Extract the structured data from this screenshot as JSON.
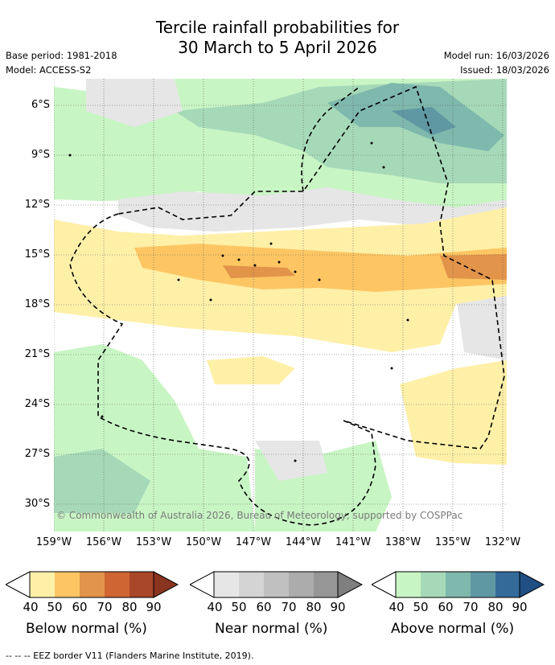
{
  "title_line1": "Tercile rainfall probabilities for",
  "title_line2": "30 March to 5 April 2026",
  "base_period": "Base period: 1981-2018",
  "model": "Model: ACCESS-S2",
  "model_run": "Model run: 16/03/2026",
  "issued": "Issued: 18/03/2026",
  "lat_ticks": [
    "6°S",
    "9°S",
    "12°S",
    "15°S",
    "18°S",
    "21°S",
    "24°S",
    "27°S",
    "30°S"
  ],
  "lon_ticks": [
    "159°W",
    "156°W",
    "153°W",
    "150°W",
    "147°W",
    "144°W",
    "141°W",
    "138°W",
    "135°W",
    "132°W"
  ],
  "credit": "© Commonwealth of Australia 2026, Bureau of Meteorology, supported by COSPPac",
  "legend": {
    "below": {
      "caption": "Below normal (%)",
      "labels": [
        "40",
        "50",
        "60",
        "70",
        "80",
        "90"
      ],
      "colors": [
        "#fff0a8",
        "#fdc663",
        "#e2944a",
        "#cf6533",
        "#a84628",
        "#8a3520"
      ]
    },
    "near": {
      "caption": "Near normal (%)",
      "labels": [
        "40",
        "50",
        "60",
        "70",
        "80",
        "90"
      ],
      "colors": [
        "#e6e6e6",
        "#d4d4d4",
        "#c0c0c0",
        "#acacac",
        "#969696",
        "#7f7f7f"
      ]
    },
    "above": {
      "caption": "Above normal (%)",
      "labels": [
        "40",
        "50",
        "60",
        "70",
        "80",
        "90"
      ],
      "colors": [
        "#c8f5c4",
        "#a6d9b8",
        "#7fb8ad",
        "#5f98a3",
        "#336a9a",
        "#1f4f83"
      ]
    }
  },
  "footer": "--  --  -- EEZ border V11 (Flanders Marine Institute, 2019)."
}
